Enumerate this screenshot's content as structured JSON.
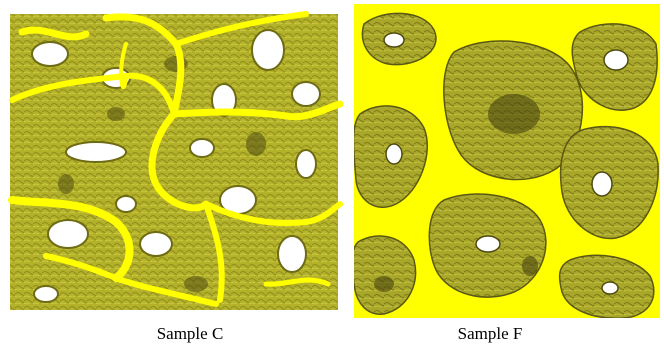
{
  "figure": {
    "panels": [
      {
        "caption": "Sample C"
      },
      {
        "caption": "Sample F"
      }
    ]
  },
  "colors": {
    "bone_fill": "#b8b62a",
    "bone_bright": "#ffff00",
    "bone_shadow": "#555511",
    "background": "#ffffff"
  }
}
